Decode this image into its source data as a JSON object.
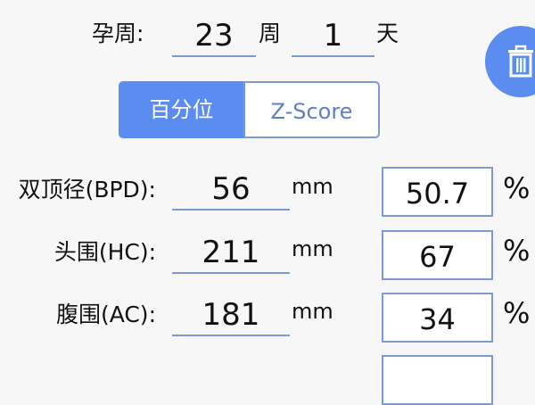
{
  "gestation": {
    "label": "孕周:",
    "weeks": "23",
    "weeks_unit": "周",
    "days": "1",
    "days_unit": "天"
  },
  "mode_toggle": {
    "options": [
      "百分位",
      "Z-Score"
    ],
    "selected": "百分位"
  },
  "colors": {
    "accent": "#5b8cf0",
    "border": "#7d9ad6"
  },
  "delete_button": {
    "icon": "trash-icon"
  },
  "measurements": [
    {
      "label": "双顶径(BPD):",
      "value": "56",
      "unit": "mm",
      "result": "50.7",
      "result_unit": "%"
    },
    {
      "label": "头围(HC):",
      "value": "211",
      "unit": "mm",
      "result": "67",
      "result_unit": "%"
    },
    {
      "label": "腹围(AC):",
      "value": "181",
      "unit": "mm",
      "result": "34",
      "result_unit": "%"
    }
  ]
}
